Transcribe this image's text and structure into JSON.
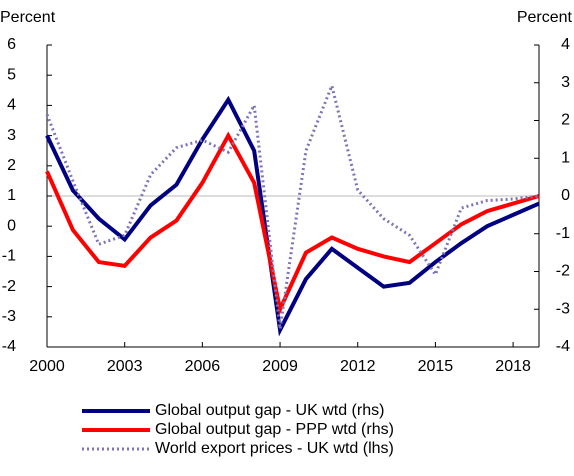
{
  "chart_data": {
    "type": "line",
    "y_label": "Percent",
    "y2_label": "Percent",
    "x": [
      2000,
      2001,
      2002,
      2003,
      2004,
      2005,
      2006,
      2007,
      2008,
      2009,
      2010,
      2011,
      2012,
      2013,
      2014,
      2015,
      2016,
      2017,
      2018,
      2019
    ],
    "xlim": [
      2000,
      2019
    ],
    "xticks": [
      2000,
      2003,
      2006,
      2009,
      2012,
      2015,
      2018
    ],
    "ylim": [
      -4,
      6
    ],
    "yticks": [
      -4,
      -3,
      -2,
      -1,
      0,
      1,
      2,
      3,
      4,
      5,
      6
    ],
    "y2lim": [
      -4,
      4
    ],
    "y2ticks": [
      -4,
      -3,
      -2,
      -1,
      0,
      1,
      2,
      3,
      4
    ],
    "series": [
      {
        "name": "Global output gap - UK wtd (rhs)",
        "color": "#000080",
        "axis": "y2",
        "values": [
          1.6,
          0.15,
          -0.6,
          -1.15,
          -0.25,
          0.3,
          1.5,
          2.55,
          1.2,
          -3.55,
          -2.2,
          -1.4,
          -1.9,
          -2.4,
          -2.3,
          -1.75,
          -1.25,
          -0.8,
          -0.5,
          -0.2
        ]
      },
      {
        "name": "Global output gap - PPP wtd (rhs)",
        "color": "#ff0000",
        "axis": "y2",
        "values": [
          0.65,
          -0.9,
          -1.75,
          -1.85,
          -1.1,
          -0.65,
          0.35,
          1.6,
          0.35,
          -3.0,
          -1.5,
          -1.1,
          -1.4,
          -1.6,
          -1.75,
          -1.25,
          -0.75,
          -0.4,
          -0.2,
          0
        ]
      },
      {
        "name": "World export prices - UK wtd (lhs)",
        "color": "#8073b8",
        "dotted": true,
        "values": [
          3.7,
          1.5,
          -0.6,
          -0.3,
          1.7,
          2.6,
          2.85,
          2.45,
          4.0,
          -3.4,
          2.5,
          4.65,
          1.2,
          0.25,
          -0.3,
          -1.6,
          0.6,
          0.85,
          0.9,
          1.0
        ]
      }
    ]
  }
}
